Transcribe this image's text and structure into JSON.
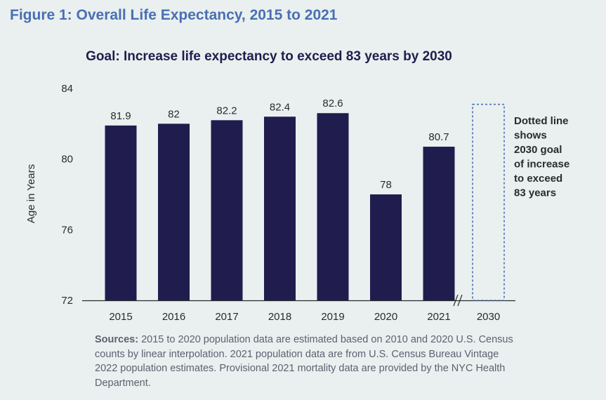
{
  "figure_title": "Figure 1: Overall Life Expectancy, 2015 to 2021",
  "sources_label": "Sources:",
  "sources_text": "2015 to 2020 population data are estimated based on 2010 and 2020 U.S. Census counts by linear interpolation. 2021 population data are from U.S. Census Bureau Vintage 2022 population estimates. Provisional 2021 mortality data are provided by the NYC Health Department.",
  "chart_data": {
    "type": "bar",
    "title": "Goal: Increase life expectancy to exceed 83 years by 2030",
    "xlabel": "",
    "ylabel": "Age in Years",
    "categories": [
      "2015",
      "2016",
      "2017",
      "2018",
      "2019",
      "2020",
      "2021"
    ],
    "values": [
      81.9,
      82,
      82.2,
      82.4,
      82.6,
      78,
      80.7
    ],
    "value_labels": [
      "81.9",
      "82",
      "82.2",
      "82.4",
      "82.6",
      "78",
      "80.7"
    ],
    "yticks": [
      72,
      76,
      80,
      84
    ],
    "ylim": [
      72,
      84
    ],
    "grid": false,
    "bar_color": "#211c4e",
    "goal": {
      "category": "2030",
      "value": 83.1,
      "style": "dotted",
      "color": "#4a6fb3",
      "annotation": [
        "Dotted line",
        "shows",
        "2030 goal",
        "of increase",
        "to exceed",
        "83 years"
      ]
    },
    "axis_break_marker": "//"
  }
}
